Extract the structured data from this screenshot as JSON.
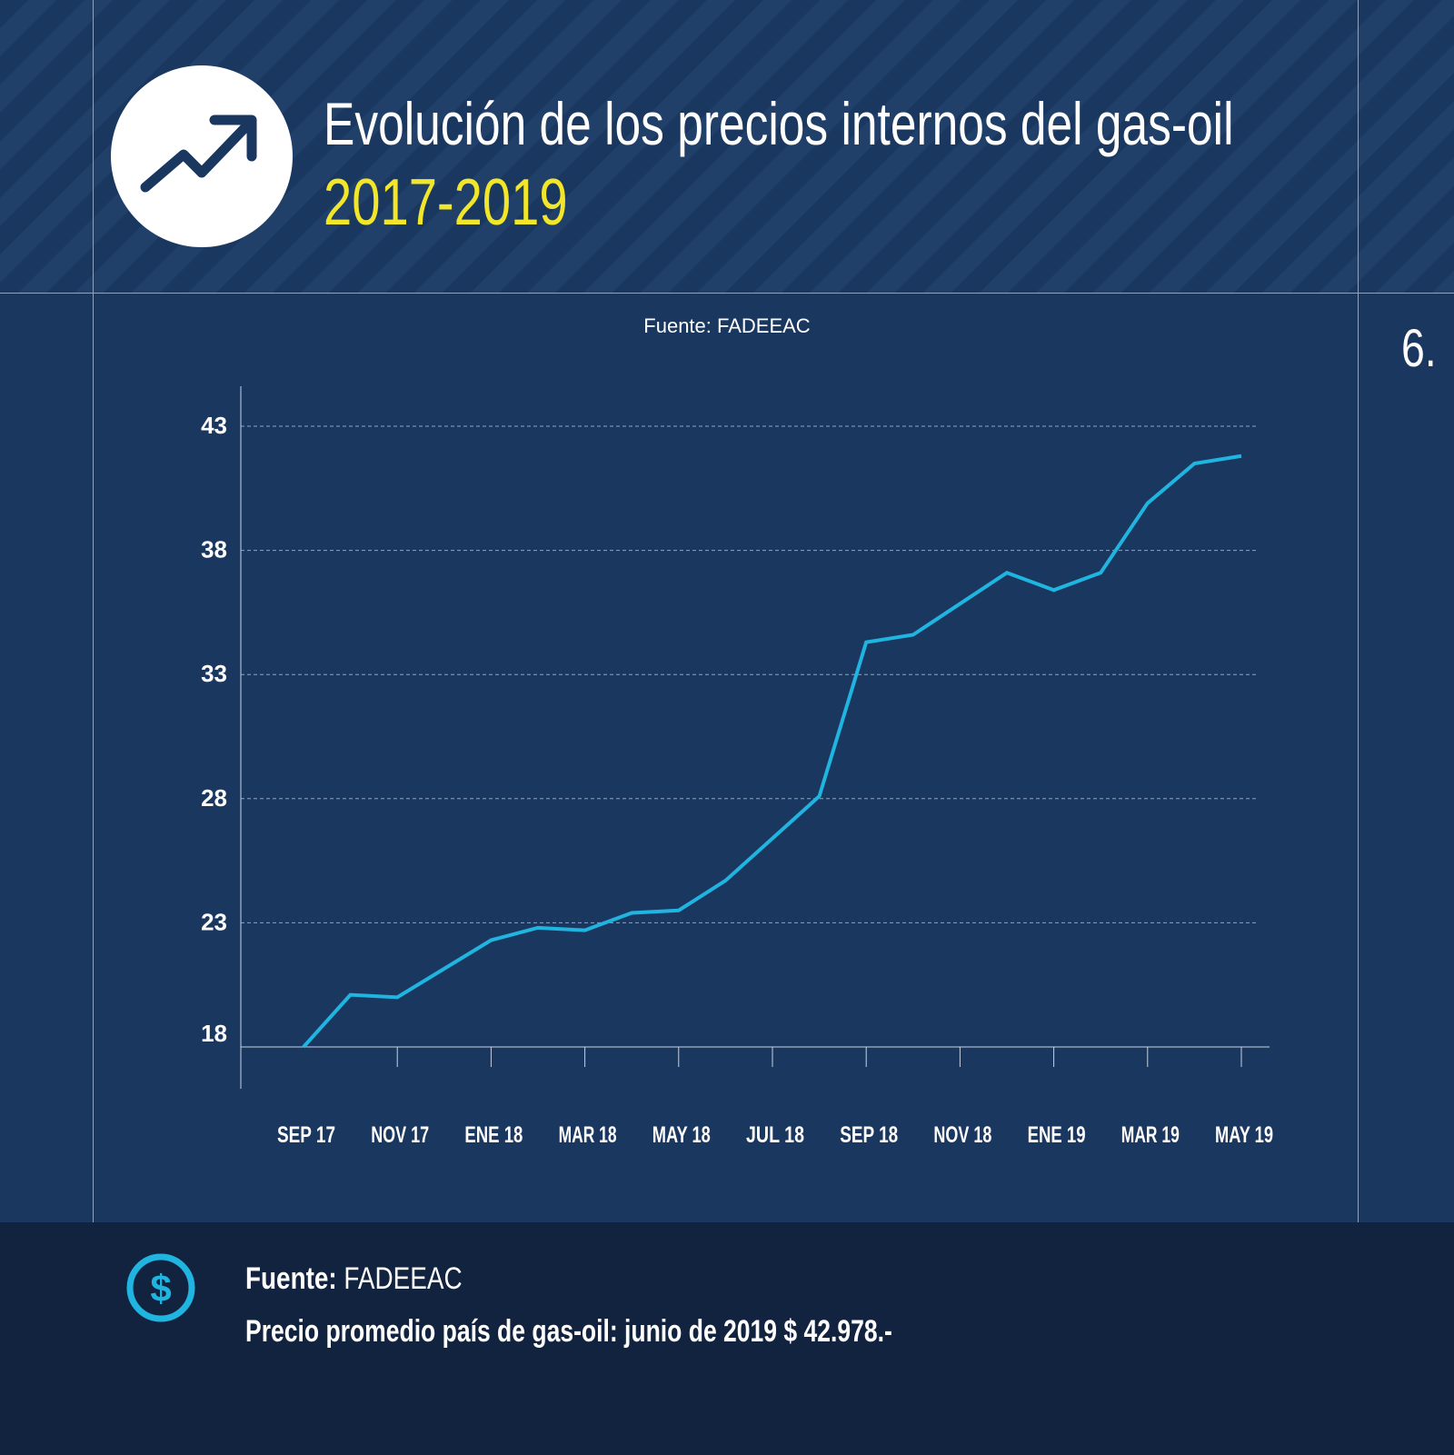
{
  "header": {
    "title": "Evolución de los precios internos del gas-oil",
    "years": "2017-2019",
    "icon": "trending-up-icon"
  },
  "source_top": "Fuente: FADEEAC",
  "page_number": "6.",
  "colors": {
    "background": "#1a375f",
    "line": "#1fb5e0",
    "years": "#f1e62a",
    "footer": "#12233f"
  },
  "chart_data": {
    "type": "line",
    "title": "",
    "xlabel": "",
    "ylabel": "",
    "ylim": [
      18,
      43
    ],
    "y_ticks": [
      "18",
      "23",
      "28",
      "33",
      "38",
      "43"
    ],
    "x_tick_labels": [
      "SEP 17",
      "NOV 17",
      "ENE 18",
      "MAR 18",
      "MAY 18",
      "JUL 18",
      "SEP 18",
      "NOV 18",
      "ENE 19",
      "MAR 19",
      "MAY 19"
    ],
    "grid": "horizontal dashed",
    "x": [
      "2017-09",
      "2017-10",
      "2017-11",
      "2018-01",
      "2018-02",
      "2018-03",
      "2018-04",
      "2018-05",
      "2018-06",
      "2018-08",
      "2018-09",
      "2018-10",
      "2018-12",
      "2019-01",
      "2019-02",
      "2019-03",
      "2019-04",
      "2019-05"
    ],
    "values": [
      18.0,
      20.1,
      20.0,
      22.3,
      22.8,
      22.7,
      23.4,
      23.5,
      24.7,
      28.1,
      34.3,
      34.6,
      37.1,
      36.4,
      37.1,
      39.9,
      41.5,
      41.8
    ]
  },
  "footer": {
    "icon": "dollar-icon",
    "source_label": "Fuente:",
    "source_value": "FADEEAC",
    "price_note": "Precio promedio país de gas-oil: junio de 2019 $ 42.978.-"
  }
}
